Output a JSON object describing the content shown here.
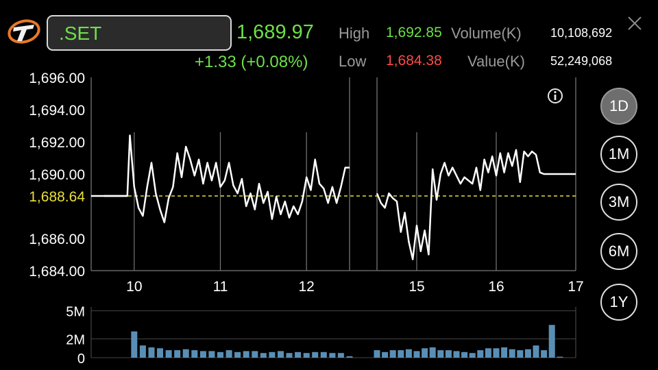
{
  "header": {
    "symbol": ".SET",
    "last": "1,689.97",
    "change": "+1.33 (+0.08%)",
    "high_label": "High",
    "high_value": "1,692.85",
    "low_label": "Low",
    "low_value": "1,684.38",
    "volume_label": "Volume(K)",
    "volume_value": "10,108,692",
    "value_label": "Value(K)",
    "value_value": "52,249,068"
  },
  "periods": [
    {
      "label": "1D",
      "active": true
    },
    {
      "label": "1M",
      "active": false
    },
    {
      "label": "3M",
      "active": false
    },
    {
      "label": "6M",
      "active": false
    },
    {
      "label": "1Y",
      "active": false
    }
  ],
  "colors": {
    "up": "#6ee04a",
    "down": "#ff4a4a",
    "prev_close": "#e8e03a",
    "volume_bar": "#5a8fb5"
  },
  "icons": {
    "logo": "settrade-logo-icon",
    "close": "close-icon",
    "info": "info-icon"
  },
  "chart_data": [
    {
      "type": "line",
      "ylim": [
        1684.0,
        1696.0
      ],
      "y_ticks": [
        "1,696.00",
        "1,694.00",
        "1,692.00",
        "1,690.00",
        "1,686.00",
        "1,684.00"
      ],
      "y_tick_values": [
        1696,
        1694,
        1692,
        1690,
        1686,
        1684
      ],
      "prev_close": 1688.64,
      "prev_close_label": "1,688.64",
      "x_ticks": [
        "10",
        "11",
        "12",
        "15",
        "16",
        "17"
      ],
      "x_tick_hours": [
        10,
        11,
        12,
        15,
        16,
        17
      ],
      "grid": true,
      "series": [
        {
          "segment": "morning",
          "x": [
            9.65,
            9.92,
            9.95,
            10.0,
            10.05,
            10.1,
            10.15,
            10.2,
            10.25,
            10.3,
            10.35,
            10.4,
            10.45,
            10.5,
            10.55,
            10.6,
            10.65,
            10.7,
            10.75,
            10.8,
            10.85,
            10.9,
            10.95,
            11.0,
            11.05,
            11.1,
            11.15,
            11.2,
            11.25,
            11.3,
            11.35,
            11.4,
            11.45,
            11.5,
            11.55,
            11.6,
            11.65,
            11.7,
            11.75,
            11.8,
            11.85,
            11.9,
            11.95,
            12.0,
            12.05,
            12.1,
            12.15,
            12.2,
            12.25,
            12.3,
            12.35,
            12.4,
            12.45,
            12.5
          ],
          "y": [
            1688.64,
            1688.64,
            1692.4,
            1689.2,
            1687.9,
            1687.4,
            1689.2,
            1690.7,
            1688.8,
            1687.8,
            1687.0,
            1688.5,
            1689.2,
            1691.3,
            1689.8,
            1691.7,
            1690.9,
            1689.9,
            1690.9,
            1689.4,
            1690.7,
            1689.6,
            1690.7,
            1689.2,
            1689.6,
            1690.7,
            1689.3,
            1688.8,
            1689.7,
            1688.0,
            1688.8,
            1687.8,
            1689.4,
            1688.2,
            1688.9,
            1687.2,
            1688.6,
            1687.5,
            1688.3,
            1687.3,
            1688.0,
            1687.5,
            1688.3,
            1689.8,
            1689.0,
            1690.9,
            1689.4,
            1689.1,
            1688.2,
            1689.2,
            1688.2,
            1689.2,
            1690.4,
            1690.4
          ]
        },
        {
          "segment": "afternoon",
          "x": [
            14.5,
            14.55,
            14.6,
            14.65,
            14.7,
            14.75,
            14.8,
            14.85,
            14.9,
            14.95,
            15.0,
            15.05,
            15.1,
            15.15,
            15.2,
            15.25,
            15.3,
            15.35,
            15.4,
            15.45,
            15.5,
            15.55,
            15.6,
            15.65,
            15.7,
            15.75,
            15.8,
            15.85,
            15.9,
            15.95,
            16.0,
            16.05,
            16.1,
            16.15,
            16.2,
            16.25,
            16.3,
            16.35,
            16.4,
            16.45,
            16.5,
            16.55,
            16.6,
            16.65,
            16.7,
            16.75,
            16.8,
            17.0
          ],
          "y": [
            1688.8,
            1688.2,
            1687.9,
            1688.8,
            1688.5,
            1688.3,
            1686.4,
            1687.6,
            1685.8,
            1684.7,
            1686.8,
            1685.2,
            1686.5,
            1685.0,
            1690.3,
            1688.4,
            1690.0,
            1690.7,
            1689.9,
            1690.4,
            1689.9,
            1689.4,
            1689.8,
            1689.6,
            1689.4,
            1690.4,
            1689.0,
            1690.9,
            1690.1,
            1691.1,
            1689.9,
            1691.3,
            1690.1,
            1691.3,
            1690.5,
            1691.5,
            1689.5,
            1691.4,
            1691.1,
            1691.4,
            1691.2,
            1690.1,
            1690.0,
            1690.0,
            1690.0,
            1690.0,
            1690.0,
            1690.0
          ]
        }
      ]
    },
    {
      "type": "bar",
      "ylim": [
        0,
        6
      ],
      "y_ticks": [
        "5M",
        "2M",
        "0"
      ],
      "y_tick_values": [
        5,
        2,
        0
      ],
      "unit": "M",
      "grid": true,
      "series": [
        {
          "segment": "morning",
          "x": [
            10.0,
            10.1,
            10.2,
            10.3,
            10.4,
            10.5,
            10.6,
            10.7,
            10.8,
            10.9,
            11.0,
            11.1,
            11.2,
            11.3,
            11.4,
            11.5,
            11.6,
            11.7,
            11.8,
            11.9,
            12.0,
            12.1,
            12.2,
            12.3,
            12.4,
            12.5
          ],
          "values": [
            2.8,
            1.3,
            1.1,
            1.0,
            0.8,
            0.8,
            0.9,
            0.8,
            0.7,
            0.7,
            0.6,
            0.8,
            0.6,
            0.7,
            0.7,
            0.5,
            0.6,
            0.7,
            0.5,
            0.6,
            0.5,
            0.6,
            0.6,
            0.5,
            0.5,
            0.15
          ]
        },
        {
          "segment": "afternoon",
          "x": [
            14.5,
            14.6,
            14.7,
            14.8,
            14.9,
            15.0,
            15.1,
            15.2,
            15.3,
            15.4,
            15.5,
            15.6,
            15.7,
            15.8,
            15.9,
            16.0,
            16.1,
            16.2,
            16.3,
            16.4,
            16.5,
            16.6,
            16.7,
            16.8
          ],
          "values": [
            0.8,
            0.6,
            0.8,
            0.8,
            0.9,
            0.7,
            1.0,
            1.1,
            0.8,
            0.8,
            0.7,
            0.6,
            0.5,
            0.8,
            1.0,
            1.0,
            1.1,
            0.9,
            0.8,
            0.9,
            1.3,
            0.8,
            3.5,
            0.1
          ]
        }
      ]
    }
  ]
}
